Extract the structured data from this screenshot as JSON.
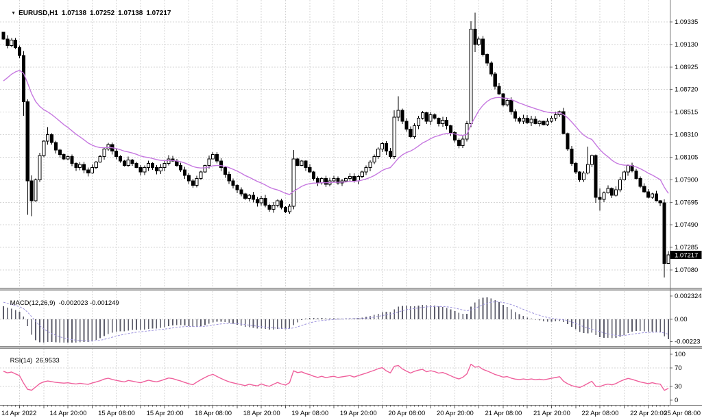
{
  "header": {
    "symbol": "EURUSD,H1",
    "open": "1.07138",
    "high": "1.07252",
    "low": "1.07138",
    "close": "1.07217"
  },
  "indicators": {
    "macd": {
      "label": "MACD(12,26,9)",
      "values": "-0.002023 -0.001249"
    },
    "rsi": {
      "label": "RSI(14)",
      "value": "26.9533"
    }
  },
  "price_tag": "1.07217",
  "colors": {
    "background": "#ffffff",
    "grid": "#d6d6d6",
    "axis_line": "#6e6e6e",
    "text": "#000000",
    "candle_up_fill": "#ffffff",
    "candle_down_fill": "#000000",
    "candle_stroke": "#000000",
    "ma_line": "#c678e0",
    "macd_histogram": "#5c5c6a",
    "macd_signal": "#9d93dd",
    "rsi_line": "#ef609c",
    "separator": "#bcbcbc",
    "separator_edge": "#8a8a8a",
    "price_tag_bg": "#000000",
    "price_tag_text": "#ffffff"
  },
  "chart_data": [
    {
      "type": "candlestick",
      "title": "EURUSD,H1",
      "x_tick_labels": [
        "14 Apr 2022",
        "14 Apr 20:00",
        "15 Apr 08:00",
        "15 Apr 20:00",
        "18 Apr 08:00",
        "18 Apr 20:00",
        "19 Apr 08:00",
        "19 Apr 20:00",
        "20 Apr 08:00",
        "20 Apr 20:00",
        "21 Apr 08:00",
        "21 Apr 20:00",
        "22 Apr 08:00",
        "22 Apr 20:00",
        "25 Apr 08:00"
      ],
      "candles_per_xtick": 12,
      "grid_every_candles": 6,
      "y_ticks": [
        {
          "label": "1.09335",
          "value": 1.09335
        },
        {
          "label": "1.09130",
          "value": 1.0913
        },
        {
          "label": "1.08925",
          "value": 1.08925
        },
        {
          "label": "1.08720",
          "value": 1.0872
        },
        {
          "label": "1.08515",
          "value": 1.08515
        },
        {
          "label": "1.08310",
          "value": 1.0831
        },
        {
          "label": "1.08105",
          "value": 1.08105
        },
        {
          "label": "1.07900",
          "value": 1.079
        },
        {
          "label": "1.07695",
          "value": 1.07695
        },
        {
          "label": "1.07490",
          "value": 1.0749
        },
        {
          "label": "1.07285",
          "value": 1.07285
        },
        {
          "label": "1.07080",
          "value": 1.0708
        }
      ],
      "ylim": [
        1.06918,
        1.09534
      ],
      "last_price": 1.07217,
      "first_open": 1.0924,
      "closes": [
        1.0918,
        1.0912,
        1.0917,
        1.091,
        1.0903,
        1.0861,
        1.0789,
        1.0771,
        1.079,
        1.0812,
        1.0825,
        1.0831,
        1.0824,
        1.0817,
        1.0813,
        1.0809,
        1.0811,
        1.0805,
        1.0801,
        1.0804,
        1.0799,
        1.0796,
        1.0801,
        1.0806,
        1.0811,
        1.0818,
        1.0822,
        1.0816,
        1.0811,
        1.0807,
        1.0803,
        1.0808,
        1.0805,
        1.0801,
        1.0797,
        1.0801,
        1.0805,
        1.0801,
        1.0798,
        1.0801,
        1.0805,
        1.0809,
        1.0807,
        1.0803,
        1.0799,
        1.0794,
        1.0789,
        1.0785,
        1.0791,
        1.0797,
        1.0803,
        1.0809,
        1.0813,
        1.0807,
        1.0801,
        1.0795,
        1.0789,
        1.0785,
        1.0781,
        1.0777,
        1.0773,
        1.0776,
        1.0772,
        1.0769,
        1.0773,
        1.0767,
        1.0763,
        1.0767,
        1.0771,
        1.0765,
        1.0761,
        1.0766,
        1.0809,
        1.0803,
        1.0807,
        1.0801,
        1.0797,
        1.0791,
        1.0787,
        1.0791,
        1.0786,
        1.0789,
        1.0791,
        1.0787,
        1.0789,
        1.0791,
        1.0793,
        1.0789,
        1.0793,
        1.0797,
        1.0801,
        1.0806,
        1.0811,
        1.0818,
        1.0823,
        1.0816,
        1.0811,
        1.0847,
        1.0853,
        1.0843,
        1.0836,
        1.0829,
        1.0839,
        1.0846,
        1.0851,
        1.0843,
        1.0849,
        1.0846,
        1.0841,
        1.0844,
        1.0839,
        1.0833,
        1.0826,
        1.0821,
        1.0827,
        1.0841,
        1.0927,
        1.0913,
        1.0918,
        1.0904,
        1.0896,
        1.0886,
        1.0875,
        1.0868,
        1.0858,
        1.0862,
        1.0852,
        1.0846,
        1.0843,
        1.0846,
        1.0842,
        1.0845,
        1.0841,
        1.0843,
        1.084,
        1.0843,
        1.0846,
        1.0849,
        1.0852,
        1.0832,
        1.0818,
        1.0805,
        1.0797,
        1.079,
        1.0796,
        1.0804,
        1.0812,
        1.0774,
        1.0772,
        1.0778,
        1.0782,
        1.0776,
        1.0781,
        1.079,
        1.0797,
        1.0803,
        1.0798,
        1.0791,
        1.0784,
        1.0779,
        1.0774,
        1.0777,
        1.0771,
        1.0769,
        1.0714,
        1.07217
      ],
      "ohlc_overrides": {
        "5": [
          1.0903,
          1.0907,
          1.0848,
          1.0861
        ],
        "6": [
          1.0861,
          1.0863,
          1.0758,
          1.0789
        ],
        "7": [
          1.0789,
          1.0794,
          1.0757,
          1.0771
        ],
        "11": [
          1.0825,
          1.0838,
          1.0822,
          1.0831
        ],
        "72": [
          1.0766,
          1.0817,
          1.0763,
          1.0809
        ],
        "97": [
          1.0811,
          1.0853,
          1.0809,
          1.0847
        ],
        "98": [
          1.0847,
          1.0866,
          1.0843,
          1.0853
        ],
        "116": [
          1.0841,
          1.0934,
          1.0838,
          1.0927
        ],
        "117": [
          1.0927,
          1.0942,
          1.0906,
          1.0913
        ],
        "145": [
          1.0796,
          1.082,
          1.0795,
          1.0804
        ],
        "147": [
          1.0812,
          1.0813,
          1.0769,
          1.0774
        ],
        "148": [
          1.0774,
          1.0782,
          1.0762,
          1.0772
        ],
        "164": [
          1.0769,
          1.0772,
          1.0701,
          1.0714
        ],
        "165": [
          1.07138,
          1.07252,
          1.07138,
          1.07217
        ]
      },
      "ma": {
        "name": "smoothing-ma",
        "period": 21,
        "seed": 1.0876
      }
    },
    {
      "type": "bar",
      "title": "MACD(12,26,9)",
      "current_values": "-0.002023 -0.001249",
      "params": {
        "fast": 12,
        "slow": 26,
        "signal": 9,
        "seed_slow_offset": 0.0014,
        "seed_signal": 0.0018
      },
      "derived_from": "panel-0 closes",
      "y_ticks": [
        {
          "label": "0.002324",
          "value": 0.002324
        },
        {
          "label": "0.00",
          "value": 0
        },
        {
          "label": "-0.00223",
          "value": -0.00223
        }
      ],
      "ylim": [
        -0.00267,
        0.0028
      ]
    },
    {
      "type": "line",
      "title": "RSI(14)",
      "current_value": "26.9533",
      "period": 14,
      "seed_avg_gain": 0.00052,
      "seed_avg_loss": 0.00026,
      "derived_from": "panel-0 closes",
      "levels": [
        70,
        30
      ],
      "y_ticks": [
        {
          "label": "100",
          "value": 100
        },
        {
          "label": "70",
          "value": 70
        },
        {
          "label": "30",
          "value": 30
        },
        {
          "label": "0",
          "value": 0
        }
      ],
      "ylim": [
        -10.4,
        111.9
      ]
    }
  ]
}
